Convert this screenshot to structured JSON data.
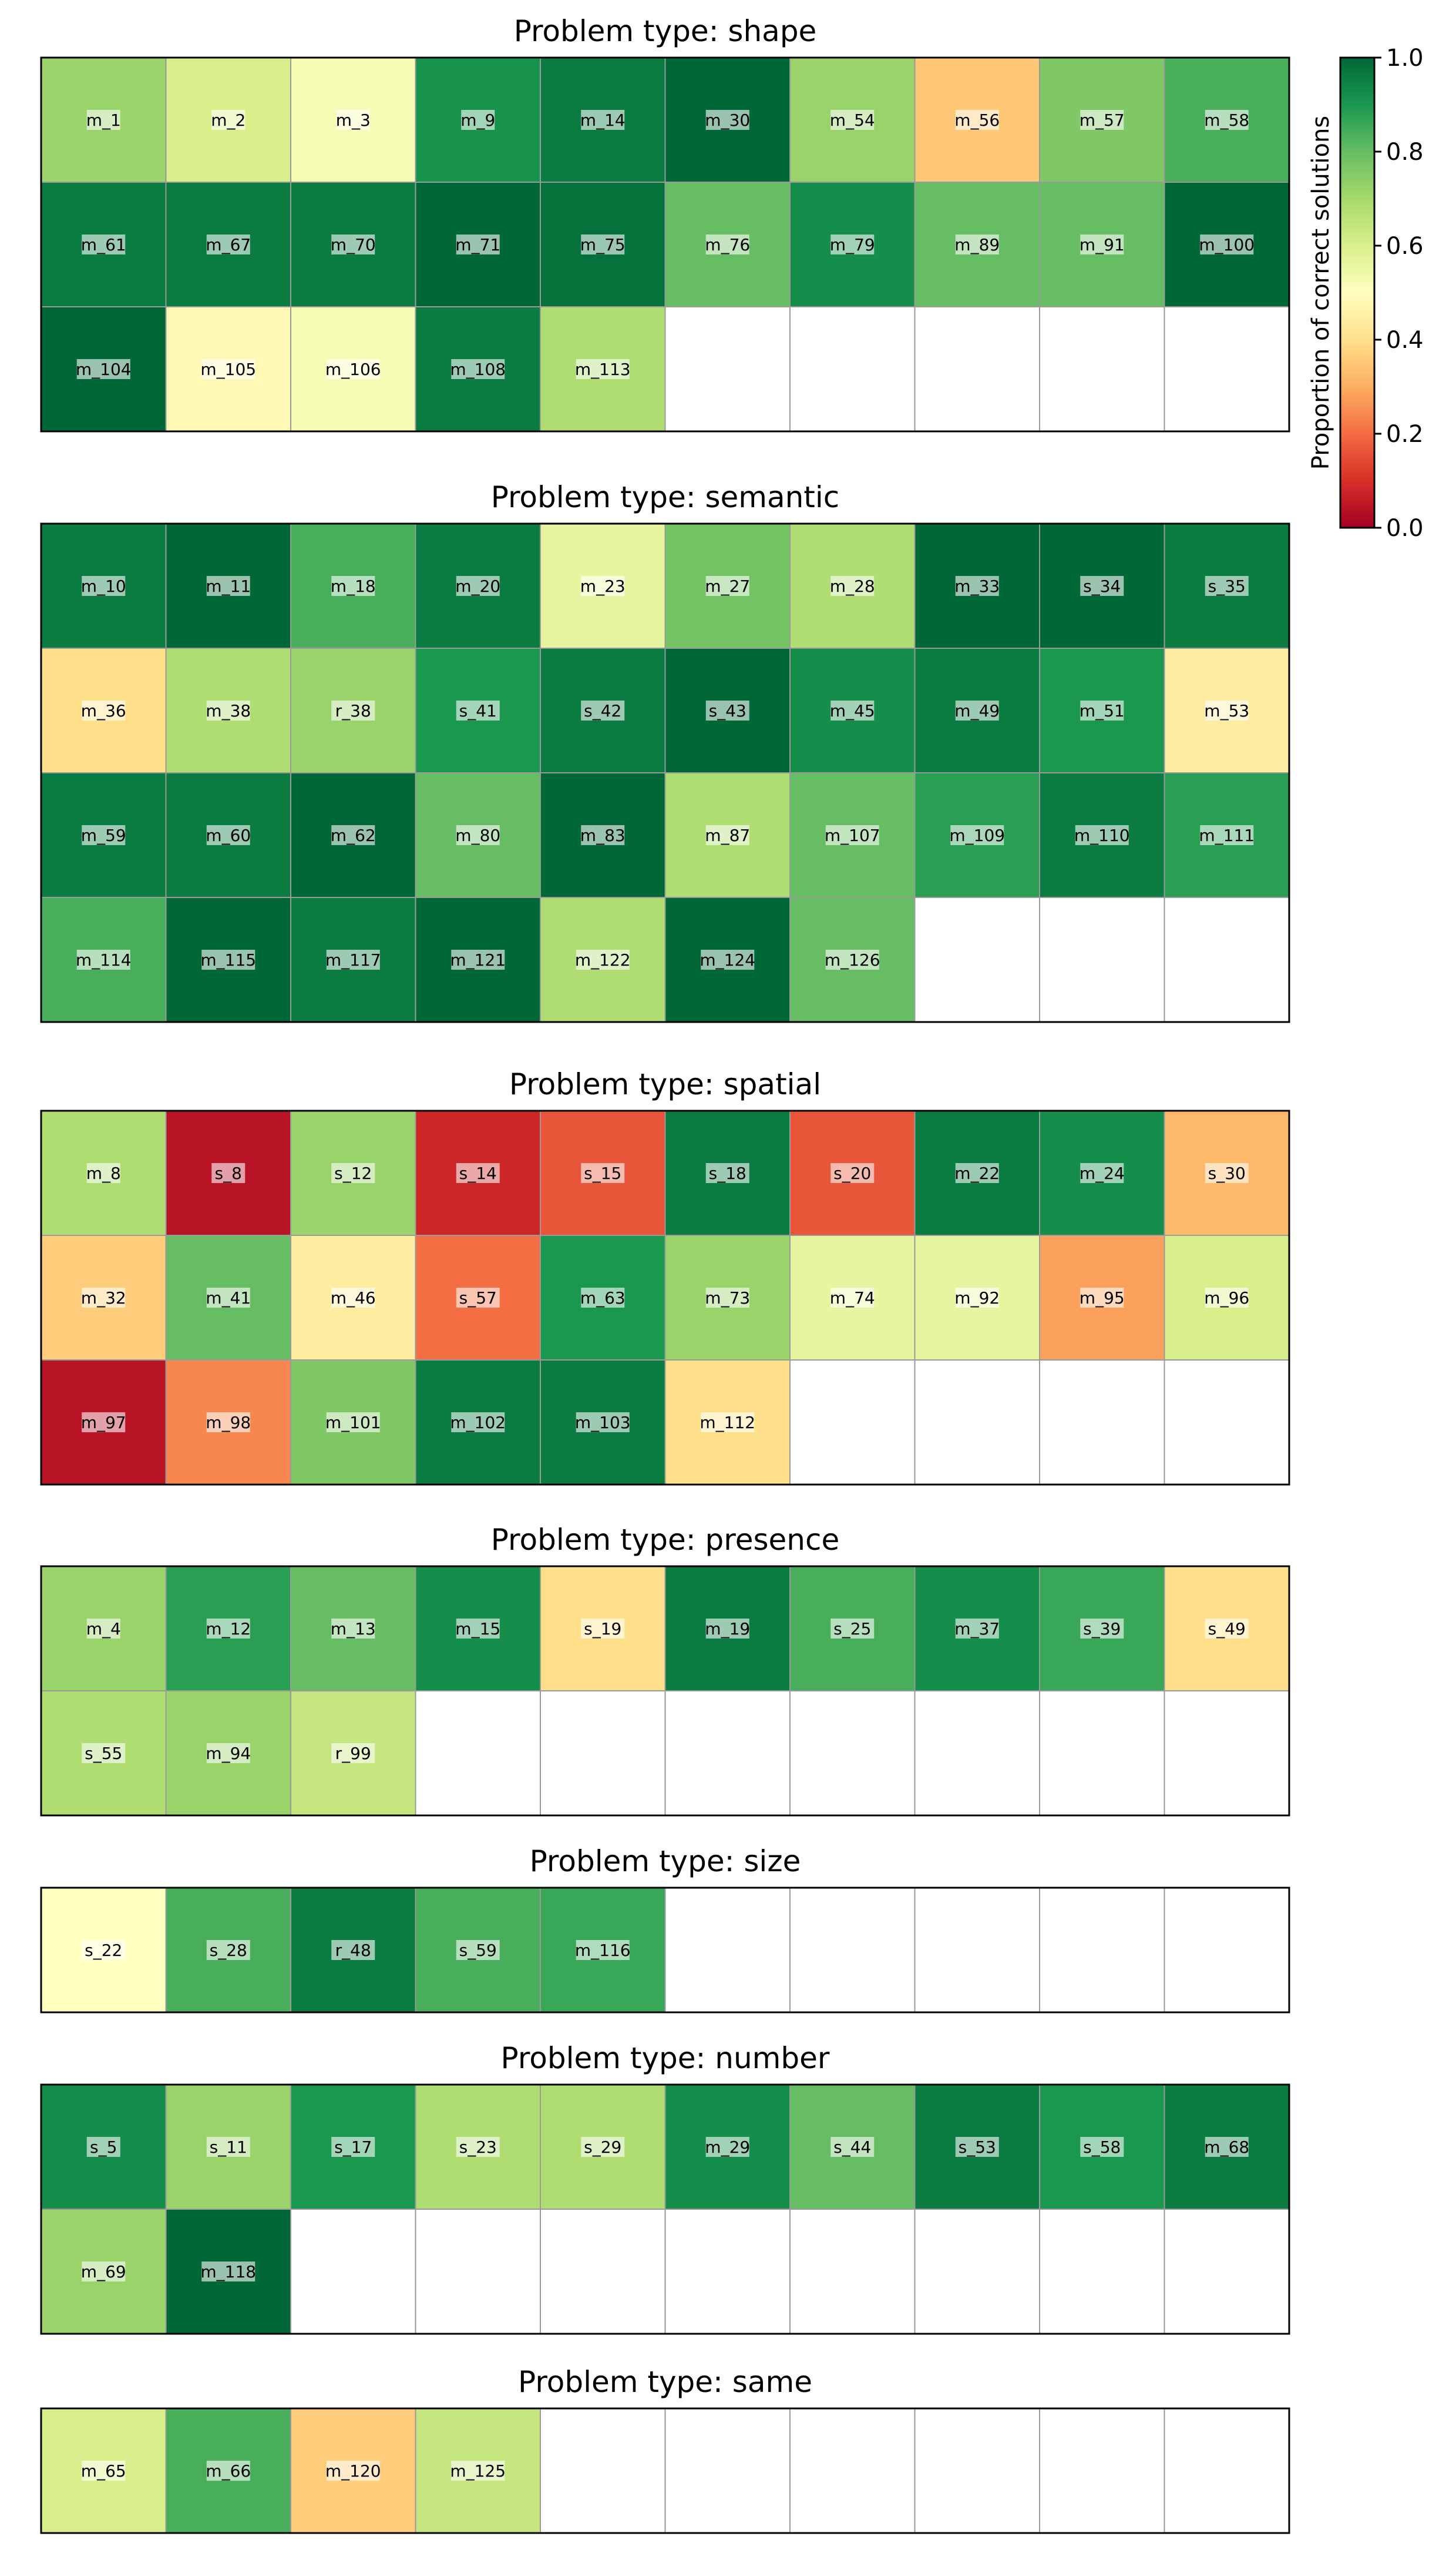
{
  "chart_data": {
    "type": "heatmap",
    "colormap": "RdYlGn",
    "columns_per_row": 10,
    "colorbar": {
      "label": "Proportion of correct solutions",
      "range": [
        0,
        1
      ],
      "ticks": [
        "0.0",
        "0.2",
        "0.4",
        "0.6",
        "0.8",
        "1.0"
      ]
    },
    "panels": [
      {
        "title": "Problem type: shape",
        "cells": [
          {
            "label": "m_1",
            "value": 0.72
          },
          {
            "label": "m_2",
            "value": 0.6
          },
          {
            "label": "m_3",
            "value": 0.52
          },
          {
            "label": "m_9",
            "value": 0.91
          },
          {
            "label": "m_14",
            "value": 0.96
          },
          {
            "label": "m_30",
            "value": 1.0
          },
          {
            "label": "m_54",
            "value": 0.72
          },
          {
            "label": "m_56",
            "value": 0.35
          },
          {
            "label": "m_57",
            "value": 0.76
          },
          {
            "label": "m_58",
            "value": 0.84
          },
          {
            "label": "m_61",
            "value": 0.96
          },
          {
            "label": "m_67",
            "value": 0.96
          },
          {
            "label": "m_70",
            "value": 0.96
          },
          {
            "label": "m_71",
            "value": 1.0
          },
          {
            "label": "m_75",
            "value": 0.98
          },
          {
            "label": "m_76",
            "value": 0.8
          },
          {
            "label": "m_79",
            "value": 0.92
          },
          {
            "label": "m_89",
            "value": 0.8
          },
          {
            "label": "m_91",
            "value": 0.8
          },
          {
            "label": "m_100",
            "value": 1.0
          },
          {
            "label": "m_104",
            "value": 1.0
          },
          {
            "label": "m_105",
            "value": 0.48
          },
          {
            "label": "m_106",
            "value": 0.52
          },
          {
            "label": "m_108",
            "value": 0.96
          },
          {
            "label": "m_113",
            "value": 0.68
          }
        ]
      },
      {
        "title": "Problem type: semantic",
        "cells": [
          {
            "label": "m_10",
            "value": 0.96
          },
          {
            "label": "m_11",
            "value": 1.0
          },
          {
            "label": "m_18",
            "value": 0.84
          },
          {
            "label": "m_20",
            "value": 0.96
          },
          {
            "label": "m_23",
            "value": 0.56
          },
          {
            "label": "m_27",
            "value": 0.78
          },
          {
            "label": "m_28",
            "value": 0.68
          },
          {
            "label": "m_33",
            "value": 1.0
          },
          {
            "label": "s_34",
            "value": 1.0
          },
          {
            "label": "s_35",
            "value": 0.96
          },
          {
            "label": "m_36",
            "value": 0.4
          },
          {
            "label": "m_38",
            "value": 0.68
          },
          {
            "label": "r_38",
            "value": 0.72
          },
          {
            "label": "s_41",
            "value": 0.9
          },
          {
            "label": "s_42",
            "value": 0.96
          },
          {
            "label": "s_43",
            "value": 1.0
          },
          {
            "label": "m_45",
            "value": 0.92
          },
          {
            "label": "m_49",
            "value": 0.96
          },
          {
            "label": "m_51",
            "value": 0.9
          },
          {
            "label": "m_53",
            "value": 0.44
          },
          {
            "label": "m_59",
            "value": 0.96
          },
          {
            "label": "m_60",
            "value": 0.96
          },
          {
            "label": "m_62",
            "value": 1.0
          },
          {
            "label": "m_80",
            "value": 0.8
          },
          {
            "label": "m_83",
            "value": 1.0
          },
          {
            "label": "m_87",
            "value": 0.68
          },
          {
            "label": "m_107",
            "value": 0.8
          },
          {
            "label": "m_109",
            "value": 0.88
          },
          {
            "label": "m_110",
            "value": 0.96
          },
          {
            "label": "m_111",
            "value": 0.88
          },
          {
            "label": "m_114",
            "value": 0.84
          },
          {
            "label": "m_115",
            "value": 1.0
          },
          {
            "label": "m_117",
            "value": 0.96
          },
          {
            "label": "m_121",
            "value": 1.0
          },
          {
            "label": "m_122",
            "value": 0.68
          },
          {
            "label": "m_124",
            "value": 1.0
          },
          {
            "label": "m_126",
            "value": 0.8
          }
        ]
      },
      {
        "title": "Problem type: spatial",
        "cells": [
          {
            "label": "m_8",
            "value": 0.68
          },
          {
            "label": "s_8",
            "value": 0.04
          },
          {
            "label": "s_12",
            "value": 0.72
          },
          {
            "label": "s_14",
            "value": 0.08
          },
          {
            "label": "s_15",
            "value": 0.16
          },
          {
            "label": "s_18",
            "value": 0.96
          },
          {
            "label": "s_20",
            "value": 0.16
          },
          {
            "label": "m_22",
            "value": 0.96
          },
          {
            "label": "m_24",
            "value": 0.92
          },
          {
            "label": "s_30",
            "value": 0.32
          },
          {
            "label": "m_32",
            "value": 0.36
          },
          {
            "label": "m_41",
            "value": 0.8
          },
          {
            "label": "m_46",
            "value": 0.44
          },
          {
            "label": "s_57",
            "value": 0.2
          },
          {
            "label": "m_63",
            "value": 0.9
          },
          {
            "label": "m_73",
            "value": 0.72
          },
          {
            "label": "m_74",
            "value": 0.56
          },
          {
            "label": "m_92",
            "value": 0.56
          },
          {
            "label": "m_95",
            "value": 0.28
          },
          {
            "label": "m_96",
            "value": 0.6
          },
          {
            "label": "m_97",
            "value": 0.04
          },
          {
            "label": "m_98",
            "value": 0.24
          },
          {
            "label": "m_101",
            "value": 0.76
          },
          {
            "label": "m_102",
            "value": 0.96
          },
          {
            "label": "m_103",
            "value": 0.96
          },
          {
            "label": "m_112",
            "value": 0.4
          }
        ]
      },
      {
        "title": "Problem type: presence",
        "cells": [
          {
            "label": "m_4",
            "value": 0.72
          },
          {
            "label": "m_12",
            "value": 0.88
          },
          {
            "label": "m_13",
            "value": 0.8
          },
          {
            "label": "m_15",
            "value": 0.92
          },
          {
            "label": "s_19",
            "value": 0.4
          },
          {
            "label": "m_19",
            "value": 0.96
          },
          {
            "label": "s_25",
            "value": 0.84
          },
          {
            "label": "m_37",
            "value": 0.92
          },
          {
            "label": "s_39",
            "value": 0.86
          },
          {
            "label": "s_49",
            "value": 0.4
          },
          {
            "label": "s_55",
            "value": 0.68
          },
          {
            "label": "m_94",
            "value": 0.72
          },
          {
            "label": "r_99",
            "value": 0.64
          }
        ]
      },
      {
        "title": "Problem type: size",
        "cells": [
          {
            "label": "s_22",
            "value": 0.5
          },
          {
            "label": "s_28",
            "value": 0.84
          },
          {
            "label": "r_48",
            "value": 0.96
          },
          {
            "label": "s_59",
            "value": 0.84
          },
          {
            "label": "m_116",
            "value": 0.86
          }
        ]
      },
      {
        "title": "Problem type: number",
        "cells": [
          {
            "label": "s_5",
            "value": 0.92
          },
          {
            "label": "s_11",
            "value": 0.72
          },
          {
            "label": "s_17",
            "value": 0.9
          },
          {
            "label": "s_23",
            "value": 0.68
          },
          {
            "label": "s_29",
            "value": 0.68
          },
          {
            "label": "m_29",
            "value": 0.92
          },
          {
            "label": "s_44",
            "value": 0.8
          },
          {
            "label": "s_53",
            "value": 0.96
          },
          {
            "label": "s_58",
            "value": 0.9
          },
          {
            "label": "m_68",
            "value": 0.96
          },
          {
            "label": "m_69",
            "value": 0.72
          },
          {
            "label": "m_118",
            "value": 1.0
          }
        ]
      },
      {
        "title": "Problem type: same",
        "cells": [
          {
            "label": "m_65",
            "value": 0.6
          },
          {
            "label": "m_66",
            "value": 0.84
          },
          {
            "label": "m_120",
            "value": 0.36
          },
          {
            "label": "m_125",
            "value": 0.64
          }
        ]
      }
    ]
  }
}
